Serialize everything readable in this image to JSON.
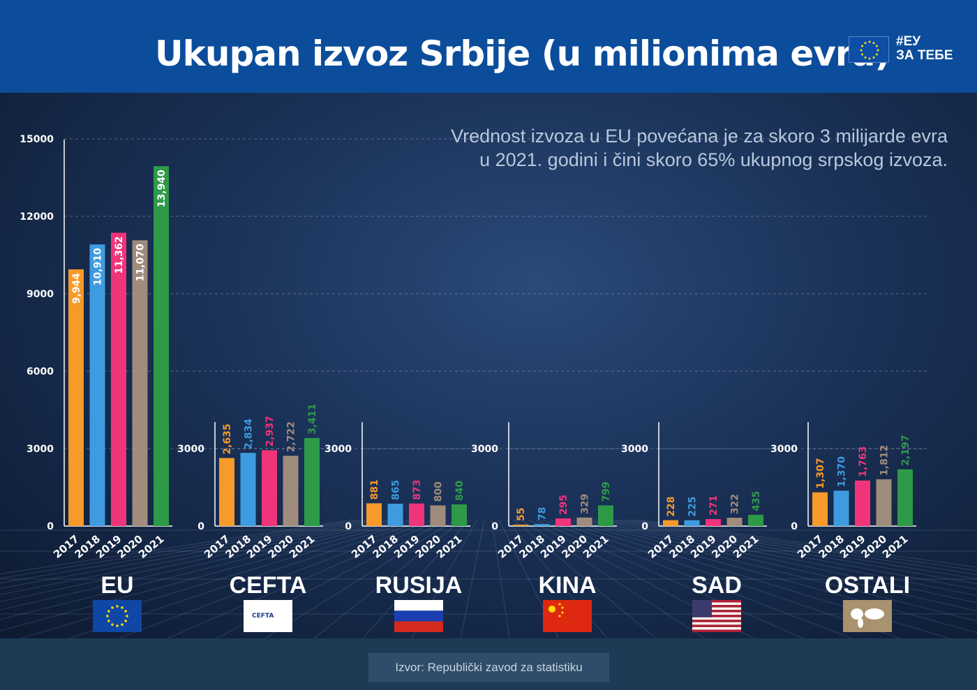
{
  "header": {
    "title": "Ukupan izvoz Srbije (u milionima evra)",
    "tag_line1": "#ЕУ",
    "tag_line2": "ЗА ТЕБЕ"
  },
  "note": {
    "line1": "Vrednost izvoza u EU povećana je za skoro 3 milijarde evra",
    "line2": "u 2021. godini i čini skoro 65% ukupnog srpskog izvoza."
  },
  "footer": {
    "source": "Izvor: Republički zavod za statistiku"
  },
  "colors": {
    "2017": "#f79a2a",
    "2018": "#3f9be0",
    "2019": "#f0347a",
    "2020": "#a08c7c",
    "2021": "#2e9a48"
  },
  "chart_data": {
    "type": "bar",
    "title": "Ukupan izvoz Srbije (u milionima evra)",
    "categories": [
      "2017",
      "2018",
      "2019",
      "2020",
      "2021"
    ],
    "panels": [
      {
        "name": "EU",
        "flag": "eu-flag",
        "ylim": [
          0,
          15000
        ],
        "ticks": [
          "0",
          "3000",
          "6000",
          "9000",
          "12000",
          "15000"
        ],
        "values": [
          9944,
          10910,
          11362,
          11070,
          13940
        ],
        "labels": [
          "9,944",
          "10,910",
          "11,362",
          "11,070",
          "13,940"
        ]
      },
      {
        "name": "CEFTA",
        "flag": "cefta-logo",
        "ylim": [
          0,
          4000
        ],
        "ticks": [
          "0",
          "3000"
        ],
        "values": [
          2635,
          2834,
          2937,
          2722,
          3411
        ],
        "labels": [
          "2,635",
          "2,834",
          "2,937",
          "2,722",
          "3,411"
        ]
      },
      {
        "name": "RUSIJA",
        "flag": "russia-flag",
        "ylim": [
          0,
          4000
        ],
        "ticks": [
          "0",
          "3000"
        ],
        "values": [
          881,
          865,
          873,
          800,
          840
        ],
        "labels": [
          "881",
          "865",
          "873",
          "800",
          "840"
        ]
      },
      {
        "name": "KINA",
        "flag": "china-flag",
        "ylim": [
          0,
          4000
        ],
        "ticks": [
          "0",
          "3000"
        ],
        "values": [
          55,
          78,
          295,
          329,
          799
        ],
        "labels": [
          "55",
          "78",
          "295",
          "329",
          "799"
        ]
      },
      {
        "name": "SAD",
        "flag": "usa-flag",
        "ylim": [
          0,
          4000
        ],
        "ticks": [
          "0",
          "3000"
        ],
        "values": [
          228,
          225,
          271,
          322,
          435
        ],
        "labels": [
          "228",
          "225",
          "271",
          "322",
          "435"
        ]
      },
      {
        "name": "OSTALI",
        "flag": "world-map",
        "ylim": [
          0,
          4000
        ],
        "ticks": [
          "0",
          "3000"
        ],
        "values": [
          1307,
          1370,
          1763,
          1812,
          2197
        ],
        "labels": [
          "1,307",
          "1,370",
          "1,763",
          "1,812",
          "2,197"
        ]
      }
    ],
    "grid": true,
    "legend": "none"
  },
  "cefta_logo_text": "CEFTA"
}
